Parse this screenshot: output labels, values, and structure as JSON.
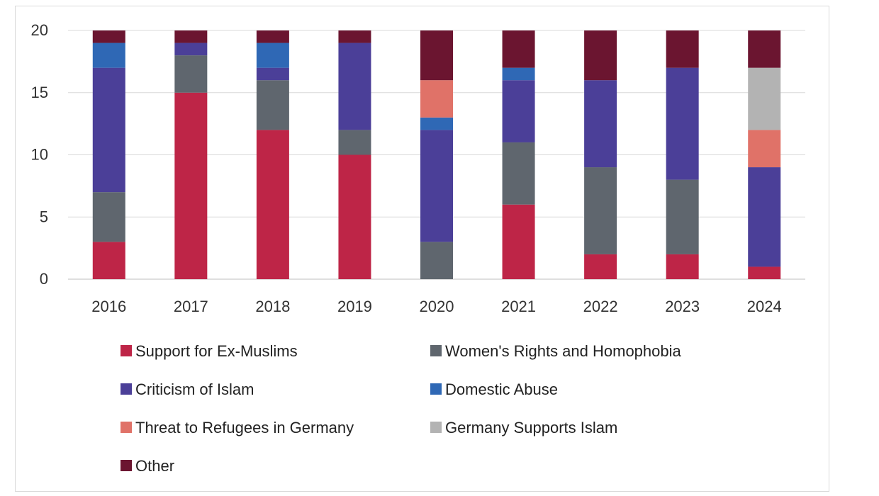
{
  "chart_data": {
    "type": "bar",
    "stacked": true,
    "categories": [
      "2016",
      "2017",
      "2018",
      "2019",
      "2020",
      "2021",
      "2022",
      "2023",
      "2024"
    ],
    "ylim": [
      0,
      20
    ],
    "yticks": [
      "0",
      "5",
      "10",
      "15",
      "20"
    ],
    "grid": true,
    "legend_position": "bottom",
    "series": [
      {
        "name": "Support for Ex-Muslims",
        "color": "#BE2547",
        "values": [
          3,
          15,
          12,
          10,
          0,
          6,
          2,
          2,
          1
        ]
      },
      {
        "name": "Women's Rights and Homophobia",
        "color": "#5F666E",
        "values": [
          4,
          3,
          4,
          2,
          3,
          5,
          7,
          6,
          0
        ]
      },
      {
        "name": "Criticism of Islam",
        "color": "#4B3F98",
        "values": [
          10,
          1,
          1,
          7,
          9,
          5,
          7,
          9,
          8
        ]
      },
      {
        "name": "Domestic Abuse",
        "color": "#2F68B5",
        "values": [
          2,
          0,
          2,
          0,
          1,
          1,
          0,
          0,
          0
        ]
      },
      {
        "name": "Threat to Refugees in Germany",
        "color": "#E07268",
        "values": [
          0,
          0,
          0,
          0,
          3,
          0,
          0,
          0,
          3
        ]
      },
      {
        "name": "Germany Supports Islam",
        "color": "#B3B3B3",
        "values": [
          0,
          0,
          0,
          0,
          0,
          0,
          0,
          0,
          5
        ]
      },
      {
        "name": "Other",
        "color": "#6B1530",
        "values": [
          1,
          1,
          1,
          1,
          4,
          3,
          4,
          3,
          3
        ]
      }
    ]
  }
}
